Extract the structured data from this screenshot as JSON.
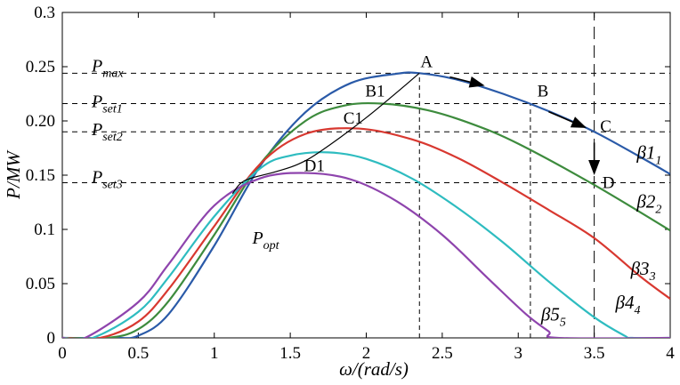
{
  "chart_data": {
    "type": "line",
    "title": "",
    "xlabel": "ω/(rad/s)",
    "ylabel": "P/MW",
    "xlim": [
      0,
      4
    ],
    "ylim": [
      0,
      0.3
    ],
    "xticks": [
      "0",
      "0.5",
      "1",
      "1.5",
      "2",
      "2.5",
      "3",
      "3.5",
      "4"
    ],
    "yticks": [
      "0",
      "0.05",
      "0.1",
      "0.15",
      "0.20",
      "0.25",
      "0.3"
    ],
    "series": [
      {
        "name": "β1",
        "sub": "1",
        "color": "#2A5AA8",
        "x": [
          0,
          0.35,
          0.5,
          0.7,
          1.0,
          1.3,
          1.6,
          1.9,
          2.2,
          2.35,
          2.6,
          2.9,
          3.2,
          3.5,
          3.8,
          4.0
        ],
        "y": [
          0,
          0,
          0.002,
          0.022,
          0.085,
          0.158,
          0.208,
          0.235,
          0.2435,
          0.244,
          0.238,
          0.225,
          0.209,
          0.19,
          0.167,
          0.151
        ]
      },
      {
        "name": "β2",
        "sub": "2",
        "color": "#3D8B3D",
        "x": [
          0,
          0.3,
          0.5,
          0.7,
          1.0,
          1.3,
          1.6,
          1.85,
          2.1,
          2.4,
          2.7,
          3.0,
          3.5,
          4.0
        ],
        "y": [
          0,
          0,
          0.008,
          0.034,
          0.095,
          0.16,
          0.2,
          0.214,
          0.216,
          0.21,
          0.197,
          0.179,
          0.141,
          0.099
        ]
      },
      {
        "name": "β3",
        "sub": "3",
        "color": "#D83830",
        "x": [
          0,
          0.25,
          0.5,
          0.7,
          1.0,
          1.3,
          1.6,
          1.95,
          2.3,
          2.6,
          2.9,
          3.2,
          3.5,
          3.8,
          4.0
        ],
        "y": [
          0,
          0,
          0.015,
          0.045,
          0.103,
          0.16,
          0.188,
          0.193,
          0.183,
          0.166,
          0.143,
          0.118,
          0.092,
          0.057,
          0.036
        ]
      },
      {
        "name": "β4",
        "sub": "4",
        "color": "#2EBCC0",
        "x": [
          0,
          0.2,
          0.5,
          0.7,
          1.0,
          1.3,
          1.5,
          1.75,
          2.0,
          2.3,
          2.6,
          2.9,
          3.2,
          3.5,
          3.7,
          3.75,
          4.0
        ],
        "y": [
          0,
          0,
          0.024,
          0.056,
          0.112,
          0.156,
          0.168,
          0.171,
          0.165,
          0.147,
          0.12,
          0.088,
          0.052,
          0.019,
          0.002,
          0,
          0
        ]
      },
      {
        "name": "β5",
        "sub": "5",
        "color": "#8E44AD",
        "x": [
          0,
          0.15,
          0.5,
          0.7,
          1.0,
          1.3,
          1.6,
          1.9,
          2.2,
          2.5,
          2.8,
          3.05,
          3.2,
          3.26,
          4.0
        ],
        "y": [
          0,
          0,
          0.033,
          0.068,
          0.122,
          0.147,
          0.152,
          0.146,
          0.126,
          0.095,
          0.055,
          0.022,
          0.006,
          0,
          0
        ]
      }
    ],
    "optimal_curve": {
      "name": "P",
      "sub": "opt",
      "x": [
        1.12,
        1.2,
        1.4,
        1.55,
        1.7,
        2.0,
        2.35
      ],
      "y": [
        0.133,
        0.145,
        0.153,
        0.16,
        0.172,
        0.203,
        0.244
      ]
    },
    "setpoints": [
      {
        "name": "P",
        "sub": "max",
        "y": 0.244
      },
      {
        "name": "P",
        "sub": "set1",
        "y": 0.216
      },
      {
        "name": "P",
        "sub": "set2",
        "y": 0.19
      },
      {
        "name": "P",
        "sub": "set3",
        "y": 0.143
      }
    ],
    "guide_lines": [
      {
        "x": 2.35,
        "y": 0.244,
        "style": "short-dash"
      },
      {
        "x": 3.08,
        "y": 0.216,
        "style": "short-dash"
      },
      {
        "x": 3.5,
        "y": 0.3,
        "style": "long-dash"
      }
    ],
    "point_labels": [
      {
        "text": "A",
        "x": 2.35,
        "y": 0.244
      },
      {
        "text": "B",
        "x": 3.08,
        "y": 0.216
      },
      {
        "text": "C",
        "x": 3.5,
        "y": 0.19
      },
      {
        "text": "D",
        "x": 3.5,
        "y": 0.143
      },
      {
        "text": "B1",
        "x": 2.07,
        "y": 0.216
      },
      {
        "text": "C1",
        "x": 1.92,
        "y": 0.19
      },
      {
        "text": "D1",
        "x": 1.7,
        "y": 0.143
      }
    ],
    "arrows": [
      {
        "from": [
          2.55,
          0.2405
        ],
        "to": [
          2.78,
          0.2325
        ]
      },
      {
        "from": [
          3.2,
          0.2085
        ],
        "to": [
          3.45,
          0.1935
        ]
      },
      {
        "from": [
          3.5,
          0.18
        ],
        "to": [
          3.5,
          0.15
        ]
      }
    ]
  }
}
